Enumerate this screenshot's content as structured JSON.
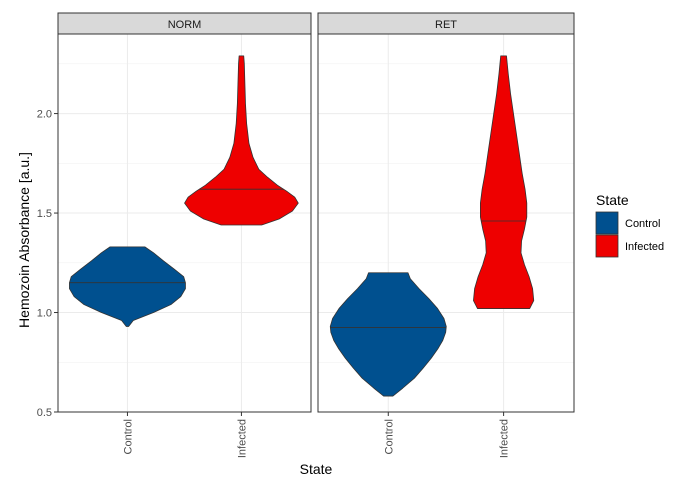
{
  "chart_data": {
    "type": "violin",
    "xlabel": "State",
    "ylabel": "Hemozoin Absorbance [a.u.]",
    "ylim": [
      0.5,
      2.4
    ],
    "yticks": [
      "0.5",
      "1.0",
      "1.5",
      "2.0"
    ],
    "categories": [
      "Control",
      "Infected"
    ],
    "grid": true,
    "legend": {
      "title": "State",
      "placement": "right",
      "entries": [
        {
          "label": "Control",
          "color": "#00508f"
        },
        {
          "label": "Infected",
          "color": "#ee0000"
        }
      ]
    },
    "panels": [
      {
        "name": "NORM",
        "violins": [
          {
            "category": "Control",
            "color": "#00508f",
            "median": 1.15,
            "profile": [
              [
                0.93,
                0.02
              ],
              [
                0.96,
                0.1
              ],
              [
                1.0,
                0.45
              ],
              [
                1.04,
                0.75
              ],
              [
                1.08,
                0.92
              ],
              [
                1.12,
                1.0
              ],
              [
                1.15,
                1.0
              ],
              [
                1.18,
                0.97
              ],
              [
                1.22,
                0.8
              ],
              [
                1.26,
                0.62
              ],
              [
                1.3,
                0.45
              ],
              [
                1.33,
                0.3
              ]
            ]
          },
          {
            "category": "Infected",
            "color": "#ee0000",
            "median": 1.62,
            "profile": [
              [
                1.44,
                0.35
              ],
              [
                1.47,
                0.65
              ],
              [
                1.51,
                0.88
              ],
              [
                1.55,
                0.98
              ],
              [
                1.58,
                0.92
              ],
              [
                1.61,
                0.78
              ],
              [
                1.64,
                0.62
              ],
              [
                1.68,
                0.45
              ],
              [
                1.72,
                0.3
              ],
              [
                1.78,
                0.2
              ],
              [
                1.85,
                0.13
              ],
              [
                1.95,
                0.09
              ],
              [
                2.05,
                0.07
              ],
              [
                2.15,
                0.06
              ],
              [
                2.25,
                0.05
              ],
              [
                2.29,
                0.04
              ]
            ]
          }
        ]
      },
      {
        "name": "RET",
        "violins": [
          {
            "category": "Control",
            "color": "#00508f",
            "median": 0.925,
            "profile": [
              [
                0.58,
                0.08
              ],
              [
                0.62,
                0.25
              ],
              [
                0.67,
                0.45
              ],
              [
                0.72,
                0.6
              ],
              [
                0.77,
                0.74
              ],
              [
                0.82,
                0.86
              ],
              [
                0.86,
                0.94
              ],
              [
                0.9,
                0.99
              ],
              [
                0.93,
                1.0
              ],
              [
                0.97,
                0.96
              ],
              [
                1.02,
                0.85
              ],
              [
                1.07,
                0.7
              ],
              [
                1.12,
                0.53
              ],
              [
                1.17,
                0.38
              ],
              [
                1.2,
                0.34
              ]
            ]
          },
          {
            "category": "Infected",
            "color": "#ee0000",
            "median": 1.46,
            "profile": [
              [
                1.02,
                0.45
              ],
              [
                1.06,
                0.52
              ],
              [
                1.12,
                0.5
              ],
              [
                1.18,
                0.44
              ],
              [
                1.24,
                0.36
              ],
              [
                1.3,
                0.3
              ],
              [
                1.36,
                0.31
              ],
              [
                1.42,
                0.36
              ],
              [
                1.48,
                0.4
              ],
              [
                1.55,
                0.4
              ],
              [
                1.62,
                0.37
              ],
              [
                1.7,
                0.32
              ],
              [
                1.8,
                0.27
              ],
              [
                1.9,
                0.22
              ],
              [
                2.0,
                0.17
              ],
              [
                2.1,
                0.12
              ],
              [
                2.2,
                0.08
              ],
              [
                2.29,
                0.05
              ]
            ]
          }
        ]
      }
    ]
  }
}
